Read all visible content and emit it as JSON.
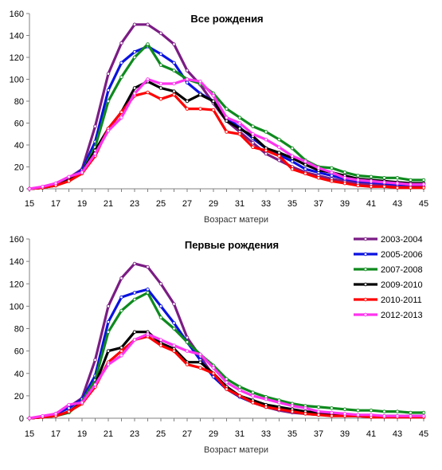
{
  "chart_data": [
    {
      "type": "line",
      "title": "Все рождения",
      "xlabel": "Возраст матери",
      "ylabel": "",
      "xlim": [
        15,
        45
      ],
      "ylim": [
        0,
        160
      ],
      "x_ticks": [
        15,
        17,
        19,
        21,
        23,
        25,
        27,
        29,
        31,
        33,
        35,
        37,
        39,
        41,
        43,
        45
      ],
      "y_ticks": [
        0,
        20,
        40,
        60,
        80,
        100,
        120,
        140,
        160
      ],
      "grid": false,
      "legend": "none",
      "x": [
        15,
        16,
        17,
        18,
        19,
        20,
        21,
        22,
        23,
        24,
        25,
        26,
        27,
        28,
        29,
        30,
        31,
        32,
        33,
        34,
        35,
        36,
        37,
        38,
        39,
        40,
        41,
        42,
        43,
        44,
        45
      ],
      "series": [
        {
          "name": "2003-2004",
          "color": "#7b1c84",
          "values": [
            0,
            1,
            4,
            10,
            18,
            57,
            105,
            133,
            150,
            150,
            142,
            132,
            108,
            95,
            78,
            62,
            52,
            42,
            32,
            26,
            20,
            15,
            12,
            9,
            7,
            5,
            4,
            3,
            3,
            2,
            2
          ]
        },
        {
          "name": "2005-2006",
          "color": "#0a12e0",
          "values": [
            0,
            1,
            4,
            9,
            17,
            43,
            90,
            115,
            125,
            130,
            123,
            115,
            97,
            87,
            80,
            65,
            56,
            46,
            37,
            31,
            25,
            18,
            15,
            12,
            9,
            7,
            6,
            5,
            4,
            4,
            4
          ]
        },
        {
          "name": "2007-2008",
          "color": "#0e8a1e",
          "values": [
            0,
            1,
            3,
            7,
            15,
            38,
            80,
            102,
            120,
            132,
            113,
            108,
            100,
            96,
            87,
            73,
            65,
            57,
            52,
            45,
            37,
            26,
            20,
            19,
            15,
            12,
            11,
            10,
            10,
            8,
            8
          ]
        },
        {
          "name": "2009-2010",
          "color": "#000000",
          "values": [
            0,
            1,
            3,
            8,
            15,
            35,
            55,
            70,
            92,
            98,
            92,
            89,
            80,
            86,
            80,
            62,
            55,
            48,
            37,
            33,
            28,
            22,
            17,
            15,
            12,
            9,
            8,
            7,
            6,
            5,
            5
          ]
        },
        {
          "name": "2010-2011",
          "color": "#ff0000",
          "values": [
            0,
            1,
            3,
            7,
            14,
            30,
            55,
            70,
            85,
            88,
            82,
            86,
            73,
            73,
            72,
            52,
            50,
            38,
            35,
            30,
            18,
            14,
            10,
            7,
            5,
            3,
            2,
            2,
            1,
            1,
            1
          ]
        },
        {
          "name": "2012-2013",
          "color": "#ff33ee",
          "values": [
            0,
            2,
            5,
            11,
            15,
            32,
            53,
            65,
            87,
            100,
            96,
            96,
            100,
            98,
            85,
            65,
            60,
            50,
            45,
            38,
            30,
            25,
            19,
            15,
            10,
            8,
            7,
            6,
            5,
            4,
            4
          ]
        }
      ]
    },
    {
      "type": "line",
      "title": "Первые рождения",
      "xlabel": "Возраст матери",
      "ylabel": "",
      "xlim": [
        15,
        45
      ],
      "ylim": [
        0,
        160
      ],
      "x_ticks": [
        15,
        17,
        19,
        21,
        23,
        25,
        27,
        29,
        31,
        33,
        35,
        37,
        39,
        41,
        43,
        45
      ],
      "y_ticks": [
        0,
        20,
        40,
        60,
        80,
        100,
        120,
        140,
        160
      ],
      "grid": false,
      "legend": "top-right",
      "x": [
        15,
        16,
        17,
        18,
        19,
        20,
        21,
        22,
        23,
        24,
        25,
        26,
        27,
        28,
        29,
        30,
        31,
        32,
        33,
        34,
        35,
        36,
        37,
        38,
        39,
        40,
        41,
        42,
        43,
        44,
        45
      ],
      "series": [
        {
          "name": "2003-2004",
          "color": "#7b1c84",
          "values": [
            0,
            1,
            4,
            10,
            18,
            52,
            100,
            125,
            138,
            135,
            120,
            102,
            72,
            55,
            38,
            28,
            20,
            14,
            10,
            7,
            5,
            4,
            3,
            3,
            2,
            2,
            1,
            1,
            1,
            1,
            1
          ]
        },
        {
          "name": "2005-2006",
          "color": "#0a12e0",
          "values": [
            0,
            1,
            4,
            9,
            17,
            38,
            86,
            108,
            112,
            115,
            100,
            85,
            68,
            52,
            37,
            26,
            19,
            14,
            10,
            8,
            6,
            5,
            4,
            3,
            3,
            2,
            2,
            2,
            2,
            2,
            2
          ]
        },
        {
          "name": "2007-2008",
          "color": "#0e8a1e",
          "values": [
            0,
            1,
            2,
            5,
            15,
            34,
            77,
            96,
            106,
            112,
            90,
            80,
            68,
            57,
            47,
            35,
            28,
            23,
            19,
            16,
            13,
            11,
            10,
            9,
            8,
            7,
            7,
            6,
            6,
            5,
            5
          ]
        },
        {
          "name": "2009-2010",
          "color": "#000000",
          "values": [
            0,
            1,
            2,
            6,
            14,
            30,
            60,
            63,
            77,
            77,
            67,
            62,
            50,
            50,
            40,
            28,
            20,
            16,
            12,
            10,
            8,
            6,
            5,
            4,
            3,
            3,
            2,
            2,
            2,
            2,
            2
          ]
        },
        {
          "name": "2010-2011",
          "color": "#ff0000",
          "values": [
            0,
            1,
            2,
            6,
            13,
            28,
            50,
            60,
            70,
            73,
            65,
            60,
            48,
            45,
            40,
            26,
            20,
            14,
            10,
            8,
            6,
            4,
            3,
            2,
            2,
            2,
            1,
            1,
            1,
            1,
            1
          ]
        },
        {
          "name": "2012-2013",
          "color": "#ff33ee",
          "values": [
            0,
            2,
            4,
            12,
            14,
            30,
            48,
            56,
            70,
            75,
            70,
            65,
            60,
            57,
            45,
            32,
            25,
            20,
            17,
            14,
            11,
            9,
            6,
            5,
            4,
            3,
            3,
            2,
            2,
            2,
            2
          ]
        }
      ]
    }
  ]
}
